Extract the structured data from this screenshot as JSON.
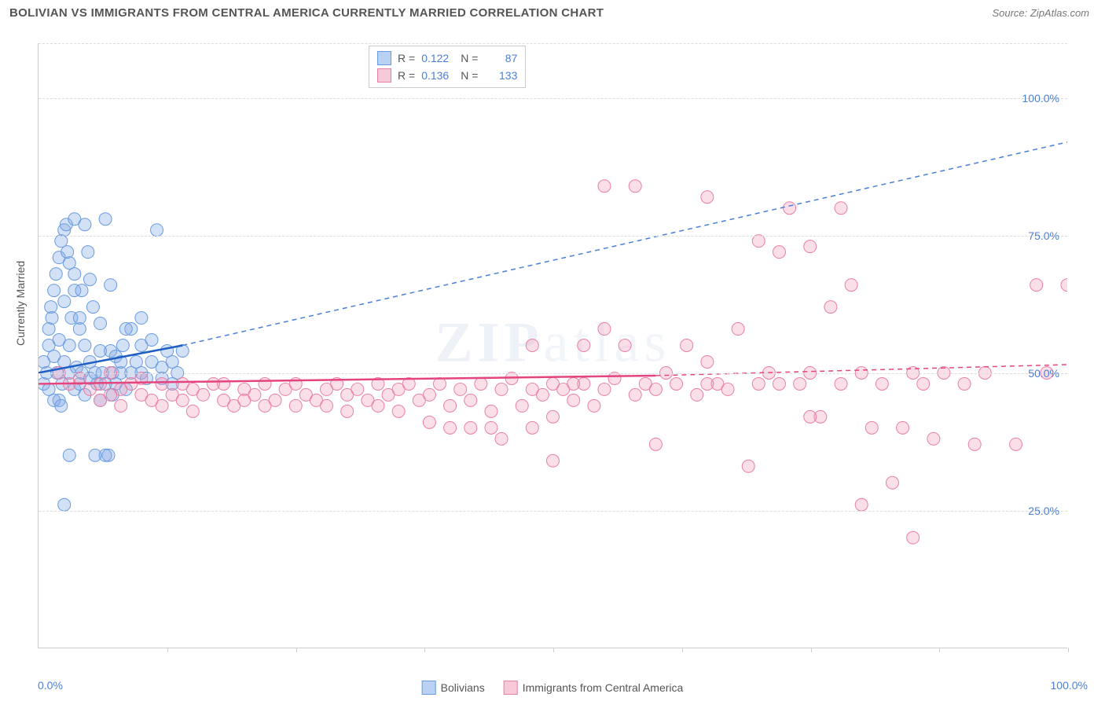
{
  "title": "BOLIVIAN VS IMMIGRANTS FROM CENTRAL AMERICA CURRENTLY MARRIED CORRELATION CHART",
  "source": "Source: ZipAtlas.com",
  "ylabel": "Currently Married",
  "watermark": "ZIPatlas",
  "chart": {
    "type": "scatter",
    "xlim": [
      0,
      100
    ],
    "ylim": [
      0,
      110
    ],
    "yticks": [
      {
        "pos": 25,
        "label": "25.0%"
      },
      {
        "pos": 50,
        "label": "50.0%"
      },
      {
        "pos": 75,
        "label": "75.0%"
      },
      {
        "pos": 100,
        "label": "100.0%"
      }
    ],
    "xtick_bottom_left": "0.0%",
    "xtick_bottom_right": "100.0%",
    "xtick_minors": [
      12.5,
      25,
      37.5,
      50,
      62.5,
      75,
      87.5,
      100
    ],
    "gridline_y_top": 110,
    "background_color": "#ffffff",
    "grid_color": "#dddddd",
    "axis_color": "#cccccc",
    "series": [
      {
        "name": "Bolivians",
        "color_fill": "rgba(130,170,230,0.35)",
        "color_stroke": "#6a9be0",
        "swatch_fill": "#b9d2f3",
        "swatch_border": "#6a9be0",
        "marker_radius": 8,
        "R": "0.122",
        "N": "87",
        "trend": {
          "x1": 0,
          "y1": 50,
          "x2": 14,
          "y2": 55,
          "solid_color": "#1f5fc4",
          "width": 2.5,
          "dash_x1": 14,
          "dash_y1": 55,
          "dash_x2": 100,
          "dash_y2": 92,
          "dash_color": "#4a7fd8"
        },
        "points": [
          [
            0.5,
            48
          ],
          [
            0.5,
            52
          ],
          [
            0.8,
            50
          ],
          [
            1,
            55
          ],
          [
            1,
            58
          ],
          [
            1,
            47
          ],
          [
            1.2,
            62
          ],
          [
            1.3,
            60
          ],
          [
            1.5,
            65
          ],
          [
            1.5,
            53
          ],
          [
            1.7,
            68
          ],
          [
            1.8,
            50
          ],
          [
            2,
            71
          ],
          [
            2,
            56
          ],
          [
            2,
            45
          ],
          [
            2.2,
            74
          ],
          [
            2.3,
            48
          ],
          [
            2.5,
            76
          ],
          [
            2.5,
            52
          ],
          [
            2.5,
            63
          ],
          [
            2.7,
            77
          ],
          [
            3,
            70
          ],
          [
            3,
            50
          ],
          [
            3,
            55
          ],
          [
            3.2,
            60
          ],
          [
            3.5,
            65
          ],
          [
            3.5,
            78
          ],
          [
            3.5,
            47
          ],
          [
            3.7,
            51
          ],
          [
            4,
            58
          ],
          [
            4,
            48
          ],
          [
            4,
            60
          ],
          [
            4.2,
            50
          ],
          [
            4.5,
            55
          ],
          [
            4.5,
            77
          ],
          [
            4.5,
            46
          ],
          [
            5,
            52
          ],
          [
            5,
            67
          ],
          [
            5,
            49
          ],
          [
            5.3,
            62
          ],
          [
            5.5,
            50
          ],
          [
            5.7,
            48
          ],
          [
            6,
            54
          ],
          [
            6,
            59
          ],
          [
            6,
            45
          ],
          [
            6.2,
            50
          ],
          [
            6.5,
            48
          ],
          [
            6.5,
            78
          ],
          [
            6.8,
            35
          ],
          [
            7,
            54
          ],
          [
            7,
            66
          ],
          [
            7.2,
            50
          ],
          [
            7.5,
            53
          ],
          [
            7.5,
            48
          ],
          [
            8,
            50
          ],
          [
            8,
            52
          ],
          [
            8.2,
            55
          ],
          [
            8.5,
            47
          ],
          [
            9,
            50
          ],
          [
            9,
            58
          ],
          [
            9.5,
            52
          ],
          [
            10,
            50
          ],
          [
            10,
            55
          ],
          [
            10,
            60
          ],
          [
            10.5,
            49
          ],
          [
            11,
            52
          ],
          [
            11,
            56
          ],
          [
            11.5,
            76
          ],
          [
            12,
            51
          ],
          [
            12,
            49
          ],
          [
            12.5,
            54
          ],
          [
            13,
            52
          ],
          [
            13,
            48
          ],
          [
            13.5,
            50
          ],
          [
            14,
            54
          ],
          [
            2.5,
            26
          ],
          [
            3,
            35
          ],
          [
            5.5,
            35
          ],
          [
            3.5,
            68
          ],
          [
            4.2,
            65
          ],
          [
            4.8,
            72
          ],
          [
            2.8,
            72
          ],
          [
            1.5,
            45
          ],
          [
            2.2,
            44
          ],
          [
            6.5,
            35
          ],
          [
            7.2,
            46
          ],
          [
            8.5,
            58
          ]
        ]
      },
      {
        "name": "Immigrants from Central America",
        "color_fill": "rgba(240,150,180,0.30)",
        "color_stroke": "#e97fa6",
        "swatch_fill": "#f7c9d9",
        "swatch_border": "#e97fa6",
        "marker_radius": 8,
        "R": "0.136",
        "N": "133",
        "trend": {
          "x1": 0,
          "y1": 48,
          "x2": 60,
          "y2": 49.5,
          "solid_color": "#e4457e",
          "width": 2.5,
          "dash_x1": 60,
          "dash_y1": 49.5,
          "dash_x2": 100,
          "dash_y2": 51.5,
          "dash_color": "#e4457e"
        },
        "points": [
          [
            2,
            50
          ],
          [
            3,
            48
          ],
          [
            4,
            49
          ],
          [
            5,
            47
          ],
          [
            6,
            48
          ],
          [
            6,
            45
          ],
          [
            7,
            46
          ],
          [
            7,
            50
          ],
          [
            8,
            47
          ],
          [
            8,
            44
          ],
          [
            9,
            48
          ],
          [
            10,
            46
          ],
          [
            10,
            49
          ],
          [
            11,
            45
          ],
          [
            12,
            48
          ],
          [
            12,
            44
          ],
          [
            13,
            46
          ],
          [
            14,
            48
          ],
          [
            14,
            45
          ],
          [
            15,
            47
          ],
          [
            15,
            43
          ],
          [
            16,
            46
          ],
          [
            17,
            48
          ],
          [
            18,
            45
          ],
          [
            18,
            48
          ],
          [
            19,
            44
          ],
          [
            20,
            47
          ],
          [
            20,
            45
          ],
          [
            21,
            46
          ],
          [
            22,
            44
          ],
          [
            22,
            48
          ],
          [
            23,
            45
          ],
          [
            24,
            47
          ],
          [
            25,
            44
          ],
          [
            25,
            48
          ],
          [
            26,
            46
          ],
          [
            27,
            45
          ],
          [
            28,
            47
          ],
          [
            28,
            44
          ],
          [
            29,
            48
          ],
          [
            30,
            46
          ],
          [
            30,
            43
          ],
          [
            31,
            47
          ],
          [
            32,
            45
          ],
          [
            33,
            48
          ],
          [
            33,
            44
          ],
          [
            34,
            46
          ],
          [
            35,
            47
          ],
          [
            35,
            43
          ],
          [
            36,
            48
          ],
          [
            37,
            45
          ],
          [
            38,
            46
          ],
          [
            38,
            41
          ],
          [
            39,
            48
          ],
          [
            40,
            44
          ],
          [
            40,
            40
          ],
          [
            41,
            47
          ],
          [
            42,
            45
          ],
          [
            42,
            40
          ],
          [
            43,
            48
          ],
          [
            44,
            43
          ],
          [
            44,
            40
          ],
          [
            45,
            47
          ],
          [
            45,
            38
          ],
          [
            46,
            49
          ],
          [
            47,
            44
          ],
          [
            48,
            47
          ],
          [
            48,
            40
          ],
          [
            49,
            46
          ],
          [
            50,
            48
          ],
          [
            50,
            42
          ],
          [
            51,
            47
          ],
          [
            52,
            45
          ],
          [
            53,
            48
          ],
          [
            53,
            55
          ],
          [
            54,
            44
          ],
          [
            55,
            47
          ],
          [
            55,
            58
          ],
          [
            56,
            49
          ],
          [
            57,
            55
          ],
          [
            58,
            46
          ],
          [
            58,
            84
          ],
          [
            59,
            48
          ],
          [
            60,
            37
          ],
          [
            60,
            47
          ],
          [
            61,
            50
          ],
          [
            62,
            48
          ],
          [
            63,
            55
          ],
          [
            64,
            46
          ],
          [
            65,
            82
          ],
          [
            65,
            52
          ],
          [
            66,
            48
          ],
          [
            67,
            47
          ],
          [
            68,
            58
          ],
          [
            69,
            33
          ],
          [
            70,
            74
          ],
          [
            71,
            50
          ],
          [
            72,
            48
          ],
          [
            72,
            72
          ],
          [
            73,
            80
          ],
          [
            74,
            48
          ],
          [
            75,
            73
          ],
          [
            75,
            50
          ],
          [
            76,
            42
          ],
          [
            77,
            62
          ],
          [
            78,
            48
          ],
          [
            78,
            80
          ],
          [
            79,
            66
          ],
          [
            80,
            26
          ],
          [
            80,
            50
          ],
          [
            81,
            40
          ],
          [
            82,
            48
          ],
          [
            83,
            30
          ],
          [
            84,
            40
          ],
          [
            85,
            50
          ],
          [
            85,
            20
          ],
          [
            86,
            48
          ],
          [
            87,
            38
          ],
          [
            88,
            50
          ],
          [
            90,
            48
          ],
          [
            91,
            37
          ],
          [
            92,
            50
          ],
          [
            95,
            37
          ],
          [
            97,
            66
          ],
          [
            98,
            50
          ],
          [
            100,
            66
          ],
          [
            65,
            48
          ],
          [
            70,
            48
          ],
          [
            55,
            84
          ],
          [
            75,
            42
          ],
          [
            48,
            55
          ],
          [
            52,
            48
          ],
          [
            50,
            34
          ]
        ]
      }
    ]
  },
  "legend_bottom": [
    {
      "label": "Bolivians",
      "swatch_fill": "#b9d2f3",
      "swatch_border": "#6a9be0"
    },
    {
      "label": "Immigrants from Central America",
      "swatch_fill": "#f7c9d9",
      "swatch_border": "#e97fa6"
    }
  ]
}
